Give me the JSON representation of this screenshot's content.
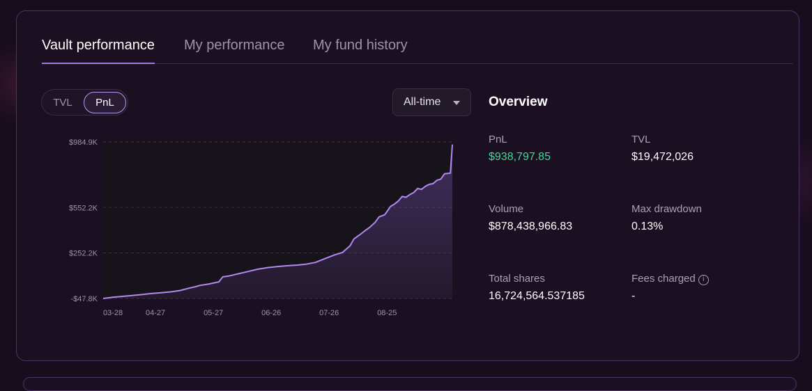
{
  "tabs": [
    {
      "label": "Vault performance",
      "active": true
    },
    {
      "label": "My performance",
      "active": false
    },
    {
      "label": "My fund history",
      "active": false
    }
  ],
  "toggle": {
    "options": [
      "TVL",
      "PnL"
    ],
    "selected": "PnL"
  },
  "range_select": {
    "value": "All-time"
  },
  "overview": {
    "title": "Overview",
    "stats": [
      {
        "label": "PnL",
        "value": "$938,797.85"
      },
      {
        "label": "TVL",
        "value": "$19,472,026"
      },
      {
        "label": "Volume",
        "value": "$878,438,966.83"
      },
      {
        "label": "Max drawdown",
        "value": "0.13%"
      },
      {
        "label": "Total shares",
        "value": "16,724,564.537185"
      },
      {
        "label": "Fees charged",
        "value": "-"
      }
    ]
  },
  "colors": {
    "accent": "#a27ae8",
    "positive": "#3ddc97",
    "line": "#b489f0"
  },
  "chart_data": {
    "type": "area",
    "title": "",
    "xlabel": "",
    "ylabel": "",
    "ylim": [
      -47800,
      984900
    ],
    "y_ticks": [
      {
        "label": "$984.9K",
        "value": 984900
      },
      {
        "label": "$552.2K",
        "value": 552200
      },
      {
        "label": "$252.2K",
        "value": 252200
      },
      {
        "label": "-$47.8K",
        "value": -47800
      }
    ],
    "x_ticks": [
      {
        "label": "03-28",
        "day": 0
      },
      {
        "label": "04-27",
        "day": 30
      },
      {
        "label": "05-27",
        "day": 60
      },
      {
        "label": "06-26",
        "day": 90
      },
      {
        "label": "07-26",
        "day": 120
      },
      {
        "label": "08-25",
        "day": 150
      }
    ],
    "series": [
      {
        "name": "PnL",
        "x": [
          0,
          5,
          10,
          15,
          20,
          25,
          30,
          35,
          40,
          45,
          48,
          50,
          55,
          60,
          62,
          65,
          70,
          75,
          80,
          85,
          90,
          95,
          100,
          105,
          110,
          115,
          120,
          124,
          128,
          130,
          133,
          136,
          138,
          141,
          143,
          146,
          149,
          151,
          153,
          155,
          157,
          159,
          161,
          163,
          165,
          167,
          169,
          171,
          173,
          175,
          177,
          179,
          180,
          181
        ],
        "y": [
          -48000,
          -40000,
          -34000,
          -28000,
          -22000,
          -15000,
          -10000,
          -4000,
          5000,
          22000,
          30000,
          38000,
          48000,
          62000,
          95000,
          100000,
          115000,
          130000,
          145000,
          155000,
          162000,
          168000,
          172000,
          178000,
          190000,
          215000,
          240000,
          255000,
          300000,
          345000,
          372000,
          402000,
          420000,
          455000,
          490000,
          505000,
          560000,
          575000,
          595000,
          625000,
          620000,
          638000,
          651000,
          678000,
          672000,
          692000,
          705000,
          710000,
          732000,
          740000,
          775000,
          778000,
          780000,
          968000
        ]
      }
    ]
  }
}
